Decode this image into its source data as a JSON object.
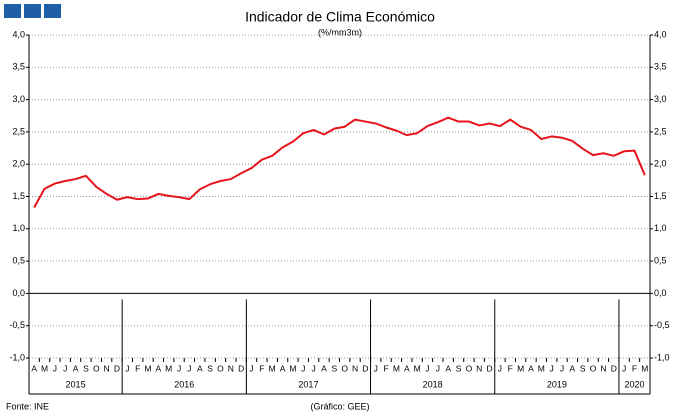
{
  "chart_data": {
    "type": "line",
    "title": "Indicador de Clima Económico",
    "subtitle": "(%/mm3m)",
    "source": "Fonte: INE",
    "credit": "(Gráfico: GEE)",
    "categories": [
      "A",
      "M",
      "J",
      "J",
      "A",
      "S",
      "O",
      "N",
      "D",
      "J",
      "F",
      "M",
      "A",
      "M",
      "J",
      "J",
      "A",
      "S",
      "O",
      "N",
      "D",
      "J",
      "F",
      "M",
      "A",
      "M",
      "J",
      "J",
      "A",
      "S",
      "O",
      "N",
      "D",
      "J",
      "F",
      "M",
      "A",
      "M",
      "J",
      "J",
      "A",
      "S",
      "O",
      "N",
      "D",
      "J",
      "F",
      "M",
      "A",
      "M",
      "J",
      "J",
      "A",
      "S",
      "O",
      "N",
      "D",
      "J",
      "F",
      "M"
    ],
    "years": [
      "2015",
      "2016",
      "2017",
      "2018",
      "2019",
      "2020"
    ],
    "series": [
      {
        "name": "Indicador de Clima Económico",
        "color": "#e8141c",
        "values": [
          1.33,
          1.62,
          1.7,
          1.74,
          1.77,
          1.82,
          1.65,
          1.54,
          1.45,
          1.49,
          1.46,
          1.47,
          1.54,
          1.51,
          1.49,
          1.46,
          1.61,
          1.69,
          1.74,
          1.77,
          1.86,
          1.94,
          2.07,
          2.13,
          2.26,
          2.35,
          2.48,
          2.53,
          2.46,
          2.55,
          2.58,
          2.69,
          2.66,
          2.63,
          2.57,
          2.52,
          2.45,
          2.48,
          2.59,
          2.65,
          2.72,
          2.66,
          2.66,
          2.6,
          2.63,
          2.59,
          2.69,
          2.58,
          2.53,
          2.39,
          2.43,
          2.41,
          2.36,
          2.24,
          2.14,
          2.17,
          2.13,
          2.2,
          2.21,
          1.83
        ]
      }
    ],
    "ylim": [
      -1,
      4
    ],
    "yticks": [
      {
        "value": -1,
        "label": "-1,0"
      },
      {
        "value": -0.5,
        "label": "-0,5"
      },
      {
        "value": 0,
        "label": "0,0"
      },
      {
        "value": 0.5,
        "label": "0,5"
      },
      {
        "value": 1,
        "label": "1,0"
      },
      {
        "value": 1.5,
        "label": "1,5"
      },
      {
        "value": 2,
        "label": "2,0"
      },
      {
        "value": 2.5,
        "label": "2,5"
      },
      {
        "value": 3,
        "label": "3,0"
      },
      {
        "value": 3.5,
        "label": "3,5"
      },
      {
        "value": 4,
        "label": "4,0"
      }
    ],
    "grid": true
  }
}
